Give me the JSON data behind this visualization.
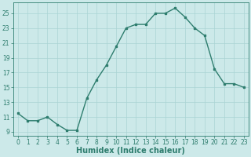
{
  "x": [
    0,
    1,
    2,
    3,
    4,
    5,
    6,
    7,
    8,
    9,
    10,
    11,
    12,
    13,
    14,
    15,
    16,
    17,
    18,
    19,
    20,
    21,
    22,
    23
  ],
  "y": [
    11.5,
    10.5,
    10.5,
    11,
    10,
    9.2,
    9.2,
    13.5,
    16.0,
    18.0,
    20.5,
    23.0,
    23.5,
    23.5,
    25.0,
    25.0,
    25.7,
    24.5,
    23.0,
    22.0,
    17.5,
    15.5,
    15.5,
    15.0
  ],
  "line_color": "#2e7d6e",
  "marker": "s",
  "marker_size": 2.0,
  "bg_color": "#cce9e9",
  "grid_color": "#aad4d4",
  "xlabel": "Humidex (Indice chaleur)",
  "xlim": [
    -0.5,
    23.5
  ],
  "ylim": [
    8.5,
    26.5
  ],
  "yticks": [
    9,
    11,
    13,
    15,
    17,
    19,
    21,
    23,
    25
  ],
  "xticks": [
    0,
    1,
    2,
    3,
    4,
    5,
    6,
    7,
    8,
    9,
    10,
    11,
    12,
    13,
    14,
    15,
    16,
    17,
    18,
    19,
    20,
    21,
    22,
    23
  ],
  "tick_label_size": 5.5,
  "xlabel_size": 7.0,
  "line_width": 1.0
}
